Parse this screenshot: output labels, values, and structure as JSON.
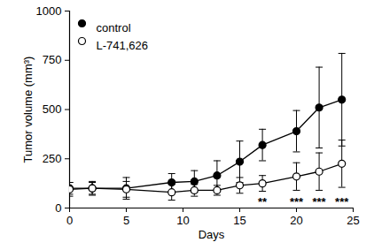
{
  "chart_data": {
    "type": "line",
    "x_label": "Days",
    "y_label": "Tumor volume (mm³)",
    "x": [
      0,
      2,
      5,
      9,
      11,
      13,
      15,
      17,
      20,
      22,
      24
    ],
    "series": [
      {
        "name": "control",
        "color": "#000000",
        "marker": "circle",
        "line_style": "solid",
        "values": [
          100,
          100,
          100,
          130,
          135,
          165,
          235,
          320,
          390,
          510,
          550
        ],
        "errors": [
          30,
          30,
          55,
          45,
          55,
          75,
          105,
          80,
          105,
          205,
          235
        ]
      },
      {
        "name": "L-741,626",
        "color": "#000000",
        "marker": "circle-open",
        "line_style": "solid",
        "values": [
          95,
          100,
          95,
          80,
          90,
          90,
          115,
          125,
          160,
          185,
          225
        ],
        "errors": [
          35,
          35,
          40,
          40,
          30,
          25,
          40,
          40,
          70,
          95,
          120
        ]
      }
    ],
    "xlim": [
      0,
      25
    ],
    "xticks": [
      0,
      5,
      10,
      15,
      20,
      25
    ],
    "ylim": [
      0,
      1000
    ],
    "yticks": [
      0,
      250,
      500,
      750,
      1000
    ],
    "grid": false,
    "legend": "top-left",
    "annotations": [
      {
        "text": "**",
        "x": 17,
        "y": 30
      },
      {
        "text": "***",
        "x": 20,
        "y": 30
      },
      {
        "text": "***",
        "x": 22,
        "y": 30
      },
      {
        "text": "***",
        "x": 24,
        "y": 30
      }
    ]
  }
}
